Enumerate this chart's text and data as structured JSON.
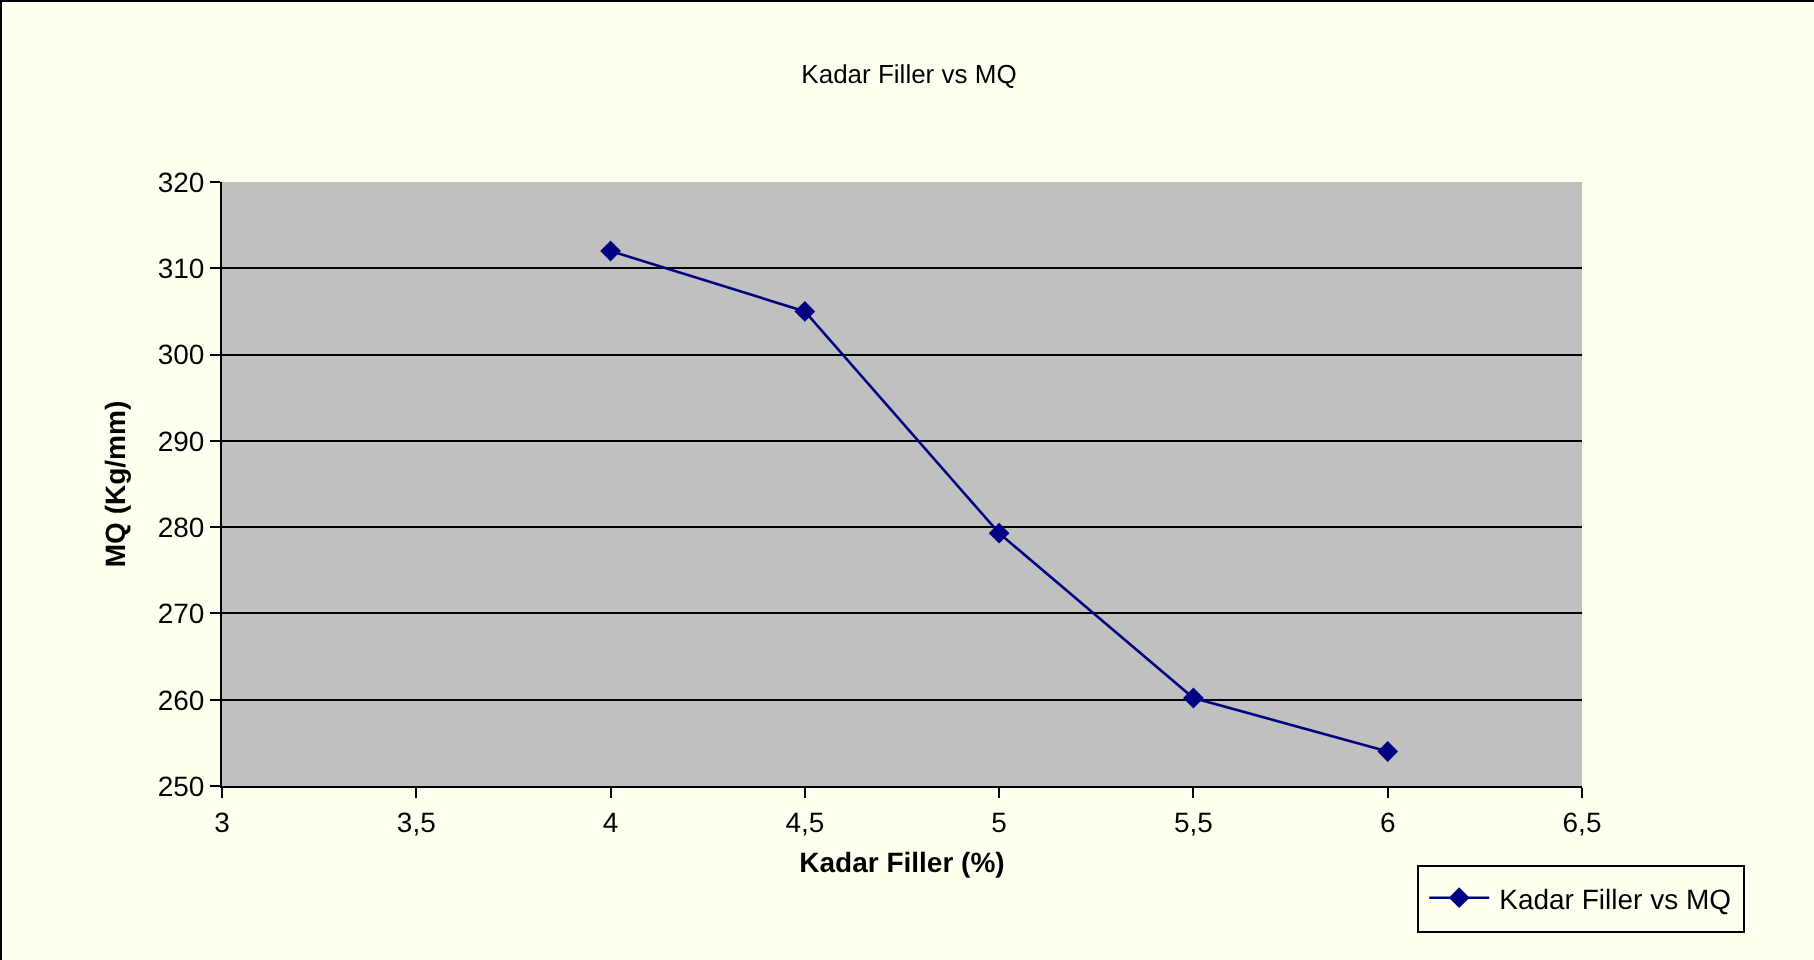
{
  "chart_data": {
    "type": "line",
    "title": "Kadar Filler vs MQ",
    "xlabel": "Kadar Filler (%)",
    "ylabel": "MQ (Kg/mm)",
    "x": [
      4,
      4.5,
      5,
      5.5,
      6
    ],
    "series": [
      {
        "name": "Kadar Filler vs MQ",
        "color": "#000080",
        "values": [
          312,
          305,
          279.3,
          260.2,
          254
        ]
      }
    ],
    "xlim": [
      3,
      6.5
    ],
    "xticks": [
      3,
      {
        "value": 3.5,
        "label": "3,5"
      },
      4,
      {
        "value": 4.5,
        "label": "4,5"
      },
      5,
      {
        "value": 5.5,
        "label": "5,5"
      },
      6,
      {
        "value": 6.5,
        "label": "6,5"
      }
    ],
    "ylim": [
      250,
      320
    ],
    "yticks": [
      250,
      260,
      270,
      280,
      290,
      300,
      310,
      320
    ],
    "grid": "y",
    "legend": "bottom right",
    "marker": "diamond",
    "line_style": "solid"
  }
}
